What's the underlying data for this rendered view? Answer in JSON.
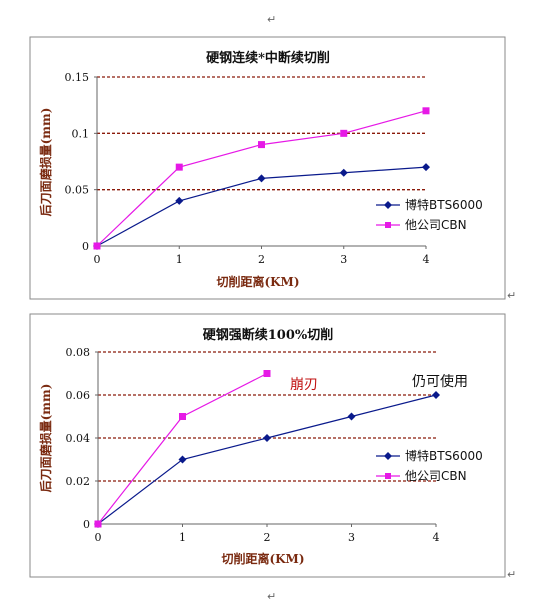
{
  "paragraph_marks": [
    "↵",
    "↵",
    "↵",
    "↵"
  ],
  "colors": {
    "series_1": "#0a1a8c",
    "series_2": "#e619e6",
    "gridline": "#8b1a0a",
    "axis_label": "#7a2a10"
  },
  "chart_data": [
    {
      "type": "line",
      "title": "硬钢连续*中断续切削",
      "xlabel": "切削距离(KM)",
      "ylabel": "后刀面磨损量(mm)",
      "xlim": [
        0,
        4
      ],
      "ylim": [
        0,
        0.15
      ],
      "x_ticks": [
        "0",
        "1",
        "2",
        "3",
        "4"
      ],
      "y_ticks": [
        "0",
        "0.05",
        "0.1",
        "0.15"
      ],
      "grid": "horizontal dashed",
      "legend_position": "right",
      "series": [
        {
          "name": "博特BTS6000",
          "marker": "diamond",
          "x": [
            0,
            1,
            2,
            3,
            4
          ],
          "y": [
            0,
            0.04,
            0.06,
            0.065,
            0.07
          ]
        },
        {
          "name": "他公司CBN",
          "marker": "square",
          "x": [
            0,
            1,
            2,
            3,
            4
          ],
          "y": [
            0,
            0.07,
            0.09,
            0.1,
            0.12
          ]
        }
      ],
      "annotations": []
    },
    {
      "type": "line",
      "title": "硬钢强断续100%切削",
      "xlabel": "切削距离(KM)",
      "ylabel": "后刀面磨损量(mm)",
      "xlim": [
        0,
        4
      ],
      "ylim": [
        0,
        0.08
      ],
      "x_ticks": [
        "0",
        "1",
        "2",
        "3",
        "4"
      ],
      "y_ticks": [
        "0",
        "0.02",
        "0.04",
        "0.06",
        "0.08"
      ],
      "grid": "horizontal dashed",
      "legend_position": "right",
      "series": [
        {
          "name": "博特BTS6000",
          "marker": "diamond",
          "x": [
            0,
            1,
            2,
            3,
            4
          ],
          "y": [
            0,
            0.03,
            0.04,
            0.05,
            0.06
          ]
        },
        {
          "name": "他公司CBN",
          "marker": "square",
          "x": [
            0,
            1,
            2
          ],
          "y": [
            0,
            0.05,
            0.07
          ]
        }
      ],
      "annotations": [
        {
          "text": "崩刃",
          "x": 2,
          "y": 0.07
        },
        {
          "text": "仍可使用",
          "x": 4,
          "y": 0.06
        }
      ]
    }
  ]
}
